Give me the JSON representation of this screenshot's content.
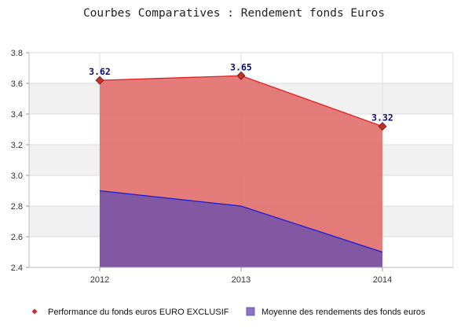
{
  "chart_data": {
    "type": "area",
    "title": "Courbes Comparatives : Rendement fonds Euros",
    "xlabel": "",
    "ylabel": "",
    "categories": [
      "2012",
      "2013",
      "2014"
    ],
    "ylim": [
      2.4,
      3.8
    ],
    "yticks": [
      "2.4",
      "2.6",
      "2.8",
      "3.0",
      "3.2",
      "3.4",
      "3.6",
      "3.8"
    ],
    "grid": true,
    "legend_position": "bottom",
    "series": [
      {
        "name": "Performance du fonds euros EURO EXCLUSIF",
        "values": [
          3.62,
          3.65,
          3.32
        ],
        "data_labels": [
          "3.62",
          "3.65",
          "3.32"
        ],
        "line_color": "#e0201d",
        "fill_color": "#e06a68",
        "marker_color": "#c4302b"
      },
      {
        "name": "Moyenne des rendements des fonds euros",
        "values": [
          2.9,
          2.8,
          2.5
        ],
        "line_color": "#1a1adb",
        "fill_color": "#7a55a6"
      }
    ]
  }
}
